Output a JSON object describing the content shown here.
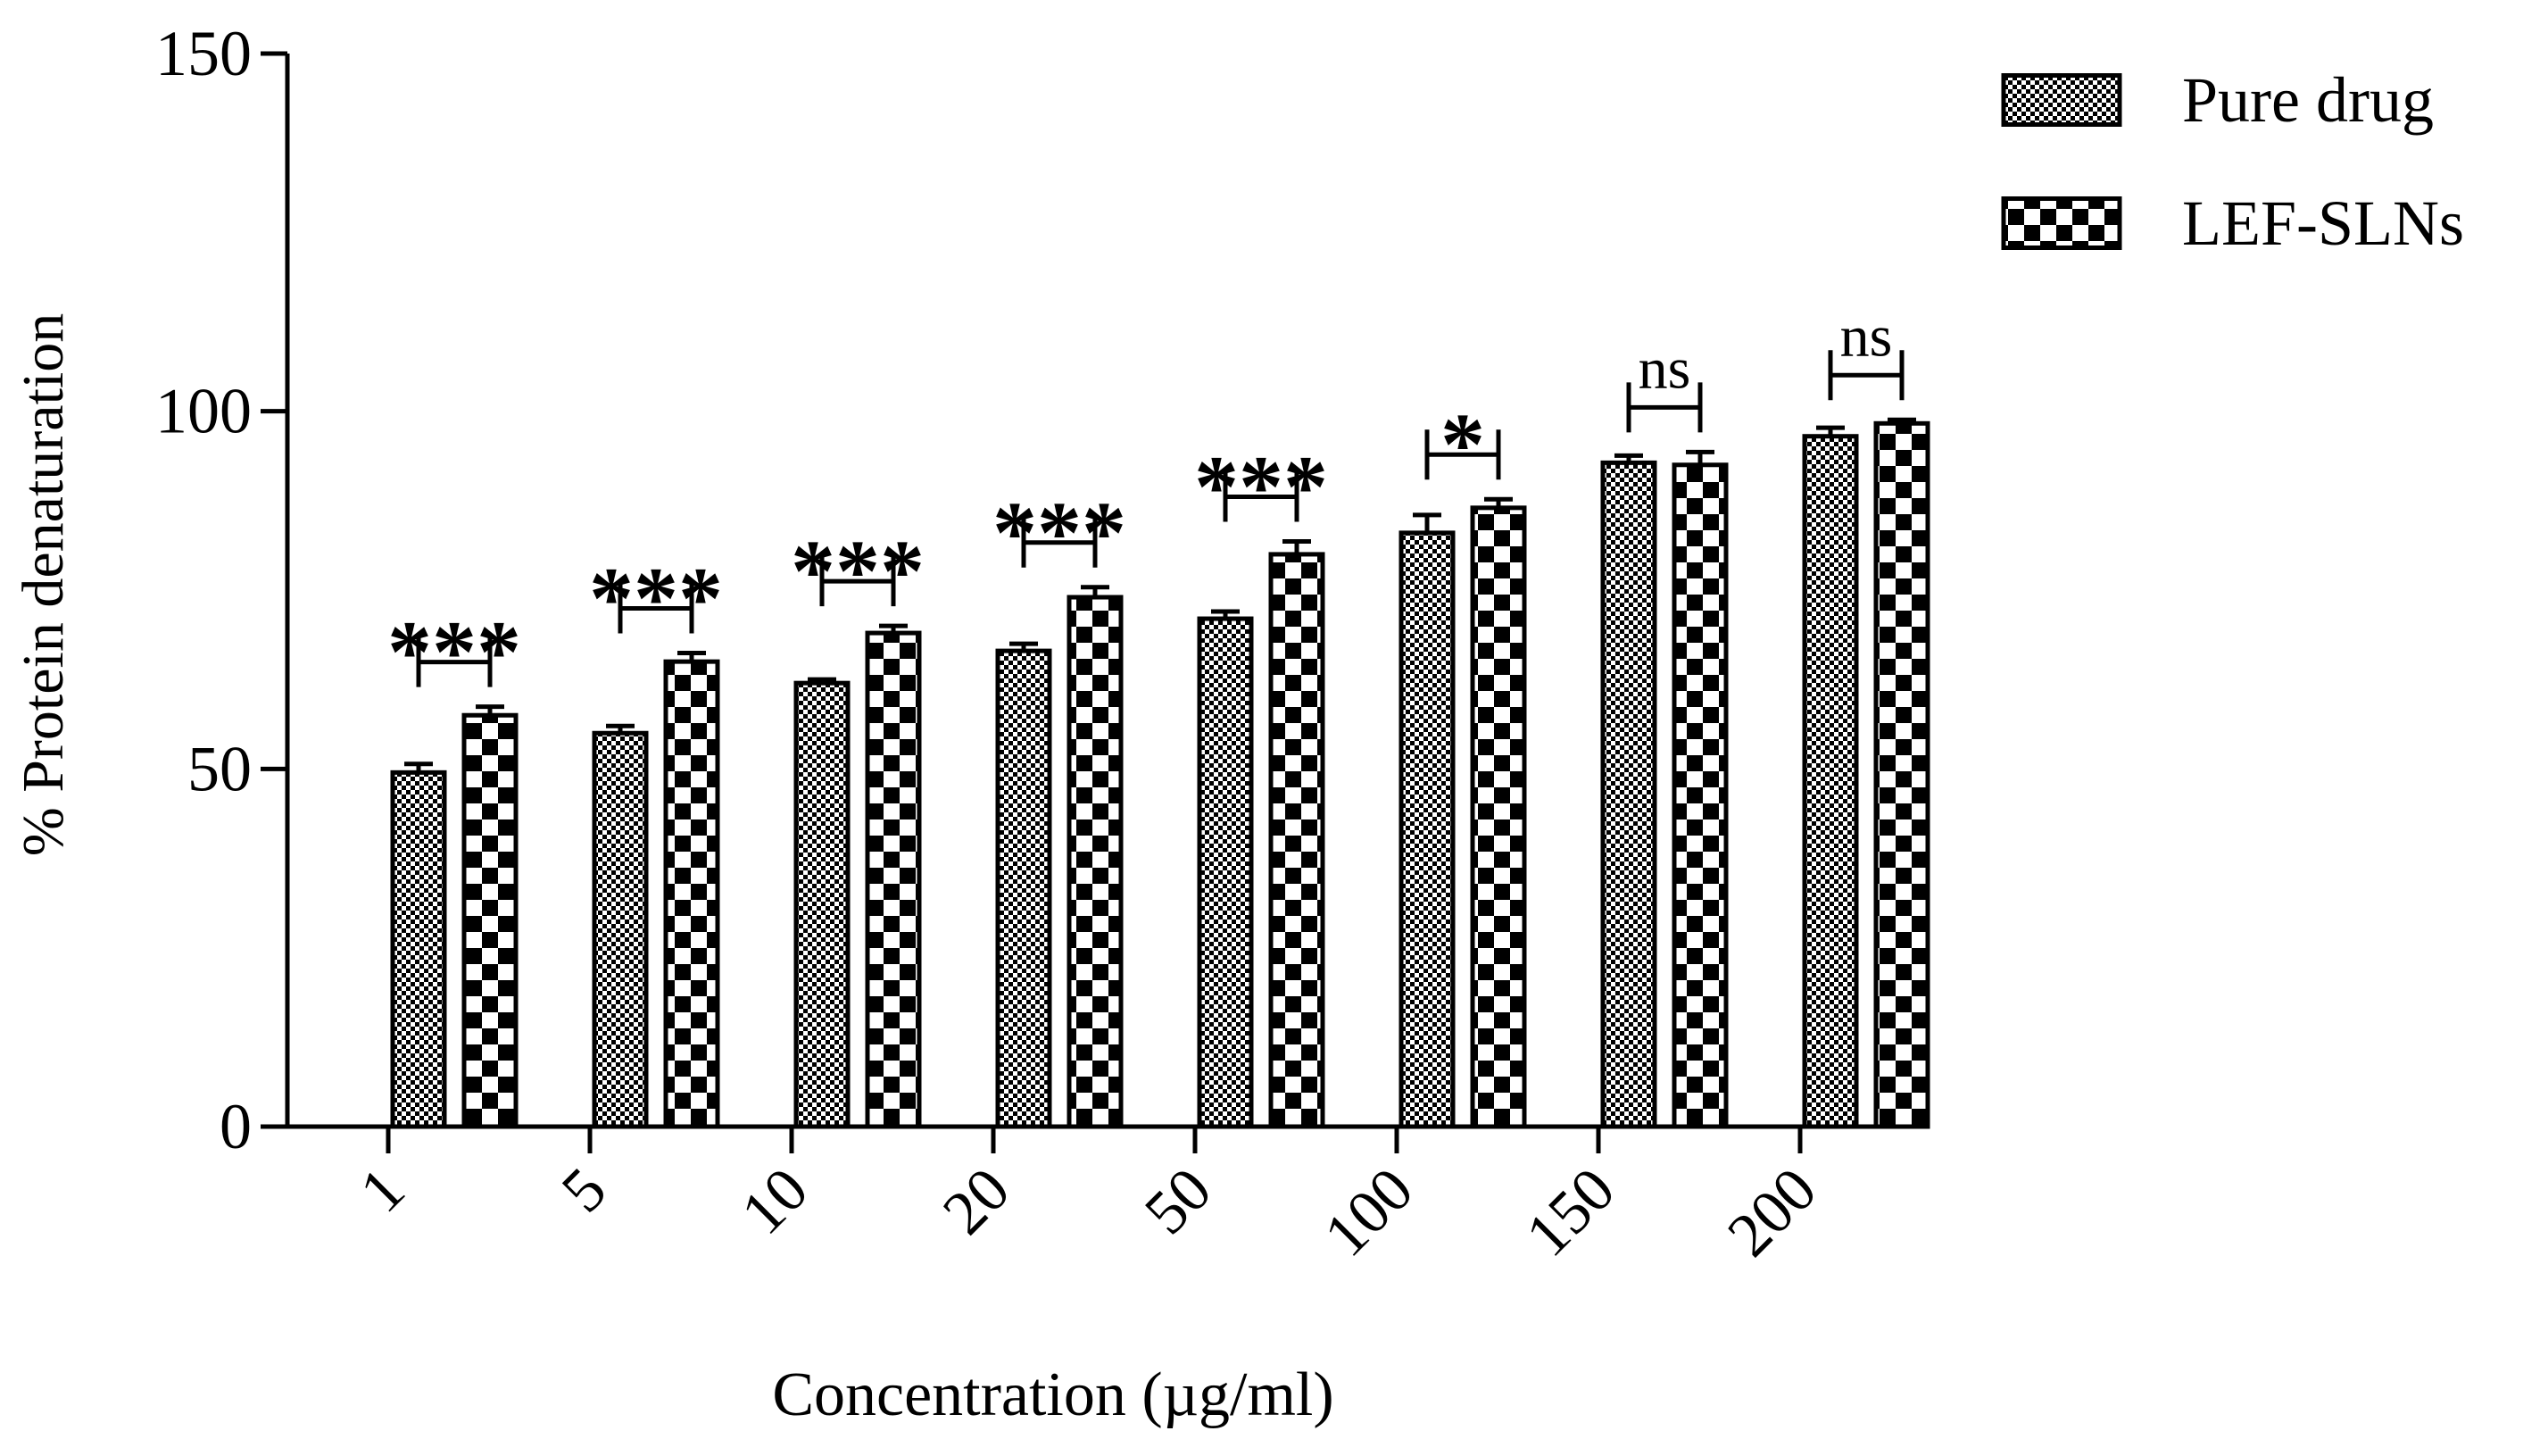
{
  "chart_data": {
    "type": "bar",
    "title": "",
    "xlabel": "Concentration (µg/ml)",
    "ylabel": "% Protein denaturation",
    "ylim": [
      0,
      150
    ],
    "yticks": [
      0,
      50,
      100,
      150
    ],
    "ytick_labels": [
      "0",
      "50",
      "100",
      "150"
    ],
    "categories": [
      "1",
      "5",
      "10",
      "20",
      "50",
      "100",
      "150",
      "200"
    ],
    "series": [
      {
        "name": "Pure drug",
        "pattern": "fine-checker",
        "values": [
          49.5,
          55.0,
          62.0,
          66.5,
          71.0,
          83.0,
          92.8,
          96.5
        ],
        "errors": [
          1.2,
          1.0,
          0.5,
          1.0,
          1.0,
          2.5,
          1.0,
          1.2
        ]
      },
      {
        "name": "LEF-SLNs",
        "pattern": "coarse-checker",
        "values": [
          57.5,
          65.0,
          69.0,
          74.0,
          80.0,
          86.5,
          92.5,
          98.3
        ],
        "errors": [
          1.2,
          1.2,
          1.0,
          1.4,
          1.8,
          1.2,
          1.8,
          0.5
        ]
      }
    ],
    "significance": [
      "***",
      "***",
      "***",
      "***",
      "***",
      "*",
      "ns",
      "ns"
    ],
    "legend": {
      "position": "top-right",
      "entries": [
        "Pure drug",
        "LEF-SLNs"
      ]
    },
    "grid": false
  },
  "colors": {
    "ink": "#000000",
    "background": "#ffffff"
  }
}
